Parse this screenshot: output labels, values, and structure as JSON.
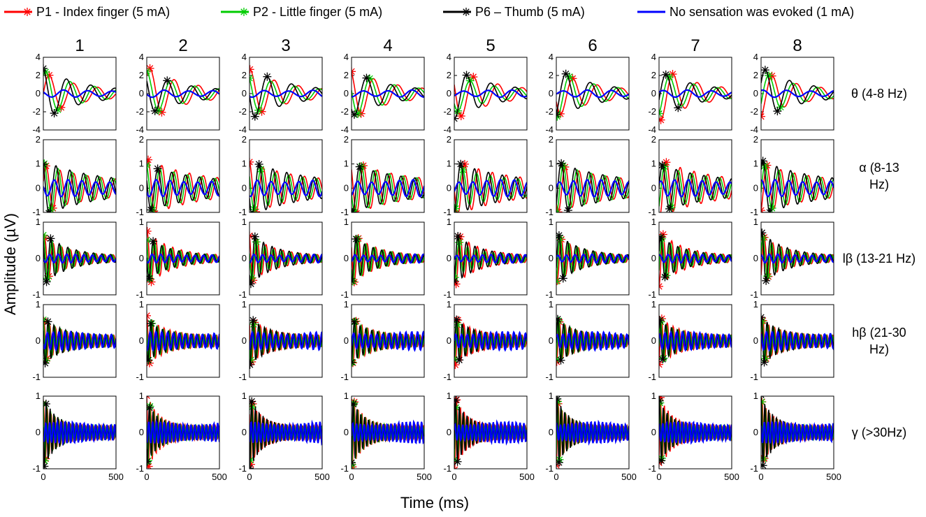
{
  "chart_data": {
    "type": "line",
    "title": "",
    "xlabel": "Time (ms)",
    "ylabel": "Amplitude (µV)",
    "xlim": [
      0,
      500
    ],
    "x_ticks": [
      "0",
      "500"
    ],
    "columns": [
      "1",
      "2",
      "3",
      "4",
      "5",
      "6",
      "7",
      "8"
    ],
    "legend": [
      {
        "name": "P1 - Index finger (5 mA)",
        "color": "#ff0000",
        "marker": "*"
      },
      {
        "name": "P2 - Little finger (5 mA)",
        "color": "#00cc00",
        "marker": "*"
      },
      {
        "name": "P6 – Thumb (5 mA)",
        "color": "#000000",
        "marker": "*"
      },
      {
        "name": "No sensation was evoked (1 mA)",
        "color": "#0000ff",
        "marker": ""
      }
    ],
    "bands": [
      {
        "label": [
          "θ (4-8 Hz)"
        ],
        "freq_hz": 6,
        "ylim": [
          -4,
          4
        ],
        "y_ticks": [
          "4",
          "2",
          "0",
          "-2",
          "-4"
        ],
        "y_tick_values": [
          4,
          2,
          0,
          -2,
          -4
        ],
        "peak_amplitude": 2.8,
        "baseline_amplitude": 0.4,
        "decay": 0.004
      },
      {
        "label": [
          "α (8-13",
          "Hz)"
        ],
        "freq_hz": 10.5,
        "ylim": [
          -1,
          2
        ],
        "y_ticks": [
          "2",
          "1",
          "0",
          "-1"
        ],
        "y_tick_values": [
          2,
          1,
          0,
          -1
        ],
        "peak_amplitude": 1.0,
        "baseline_amplitude": 0.35,
        "decay": 0.003
      },
      {
        "label": [
          "lβ (13-21 Hz)"
        ],
        "freq_hz": 17,
        "ylim": [
          -1,
          1
        ],
        "y_ticks": [
          "1",
          "0",
          "-1"
        ],
        "y_tick_values": [
          1,
          0,
          -1
        ],
        "peak_amplitude": 0.7,
        "baseline_amplitude": 0.12,
        "decay": 0.006
      },
      {
        "label": [
          "hβ (21-30",
          "Hz)"
        ],
        "freq_hz": 25,
        "ylim": [
          -1,
          1
        ],
        "y_ticks": [
          "1",
          "0",
          "-1"
        ],
        "y_tick_values": [
          1,
          0,
          -1
        ],
        "peak_amplitude": 0.55,
        "baseline_amplitude": 0.25,
        "decay": 0.008
      },
      {
        "label": [
          "γ (>30Hz)"
        ],
        "freq_hz": 38,
        "ylim": [
          -1,
          1
        ],
        "y_ticks": [
          "1",
          "0",
          "-1"
        ],
        "y_tick_values": [
          1,
          0,
          -1
        ],
        "peak_amplitude": 0.9,
        "baseline_amplitude": 0.3,
        "decay": 0.012
      }
    ]
  }
}
